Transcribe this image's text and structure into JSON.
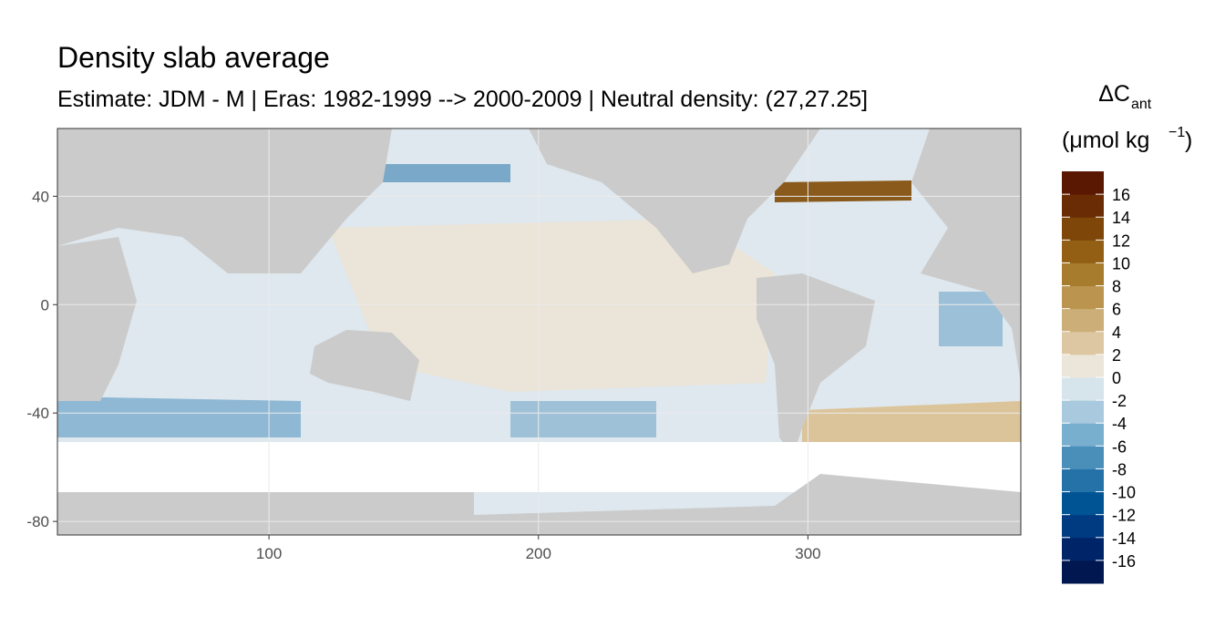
{
  "chart_data": {
    "type": "map",
    "title": "Density slab average",
    "subtitle": "Estimate: JDM - M | Eras: 1982-1999 --> 2000-2009 | Neutral density: (27,27.25]",
    "xlim": [
      21.5,
      379
    ],
    "xticks": [
      100,
      200,
      300
    ],
    "ylim": [
      -85,
      65
    ],
    "yticks": [
      40,
      0,
      -40,
      -80
    ],
    "legend": {
      "title": "ΔC",
      "title_subscript": "ant",
      "unit": "(μmol kg",
      "unit_superscript": "−1",
      "unit_close": ")",
      "lim": [
        -18,
        18
      ],
      "ticks": [
        16,
        14,
        12,
        10,
        8,
        6,
        4,
        2,
        0,
        -2,
        -4,
        -6,
        -8,
        -10,
        -12,
        -14,
        -16
      ],
      "colors": [
        "#00174f",
        "#002468",
        "#003a80",
        "#005494",
        "#2472a8",
        "#4a8fba",
        "#78aece",
        "#a9c9de",
        "#d6e4ec",
        "#ebe5da",
        "#ddc7a2",
        "#ccae78",
        "#bb9550",
        "#a77c2c",
        "#935f14",
        "#7e4608",
        "#6a2c04",
        "#5a1702"
      ]
    }
  }
}
